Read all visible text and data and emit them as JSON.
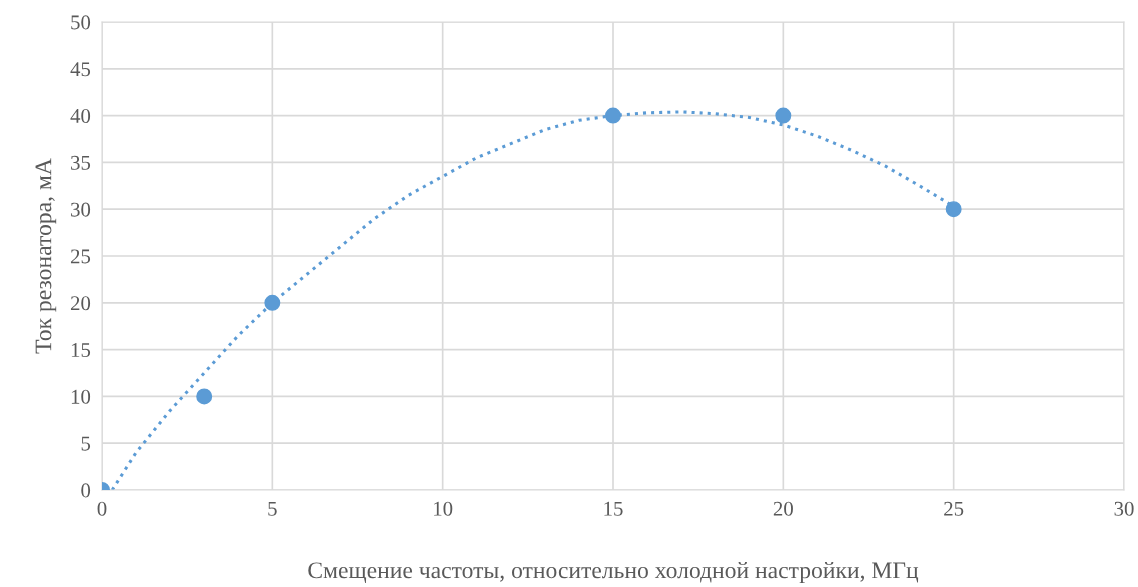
{
  "chart_data": {
    "type": "scatter",
    "xlabel": "Смещение частоты, относительно холодной настройки, МГц",
    "ylabel": "Ток резонатора, мА",
    "xlim": [
      0,
      30
    ],
    "ylim": [
      0,
      50
    ],
    "xticks": [
      0,
      5,
      10,
      15,
      20,
      25,
      30
    ],
    "yticks": [
      0,
      5,
      10,
      15,
      20,
      25,
      30,
      35,
      40,
      45,
      50
    ],
    "grid": true,
    "legend": false,
    "series": [
      {
        "color": "#5b9bd5",
        "marker": "circle",
        "x": [
          0,
          3,
          5,
          15,
          20,
          25
        ],
        "values": [
          0,
          10,
          20,
          40,
          40,
          30
        ]
      },
      {
        "type": "line",
        "color": "#5b9bd5",
        "line_style": "dotted",
        "marker": "none",
        "x": [
          0.3,
          1,
          2,
          3,
          4,
          5,
          6,
          7,
          8,
          9,
          10,
          11,
          12,
          13,
          14,
          15,
          16,
          17,
          18,
          19,
          20,
          21,
          22,
          23,
          24,
          25
        ],
        "values": [
          0,
          4,
          8.5,
          12.5,
          16.5,
          20,
          23,
          26,
          29,
          31.5,
          33.5,
          35.5,
          37,
          38.5,
          39.5,
          40,
          40.3,
          40.4,
          40.2,
          39.8,
          39,
          37.8,
          36.3,
          34.6,
          32.5,
          30.3
        ]
      }
    ]
  }
}
